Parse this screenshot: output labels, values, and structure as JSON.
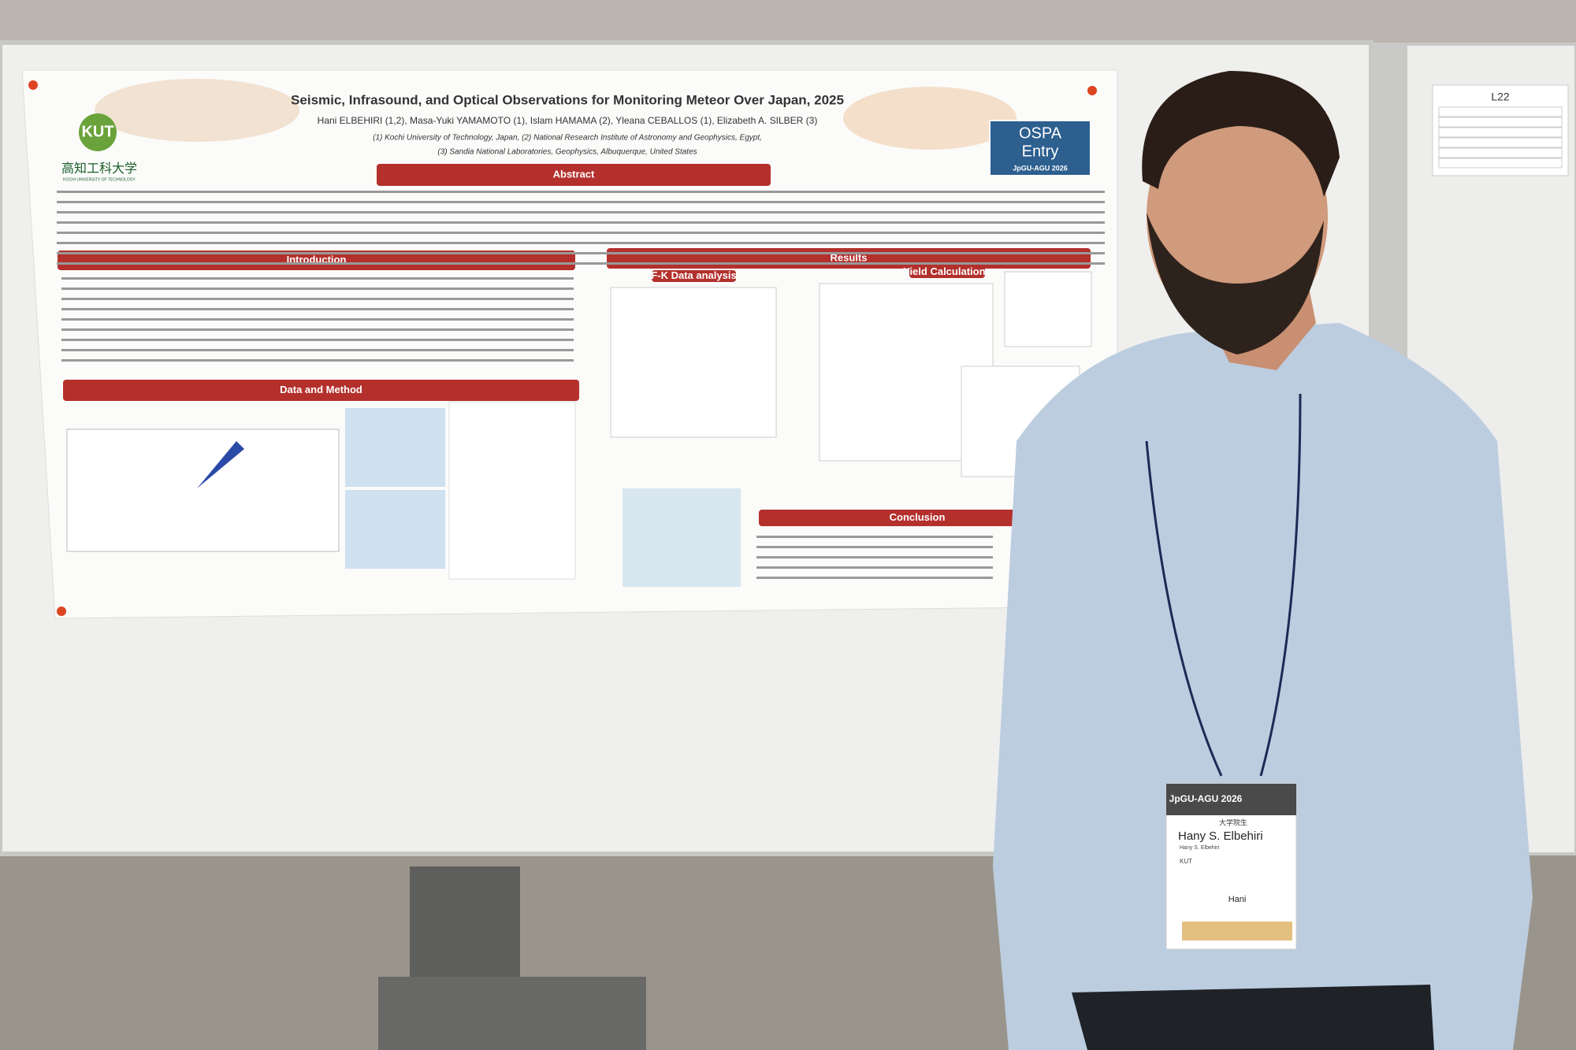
{
  "poster": {
    "title": "Seismic, Infrasound, and Optical Observations for Monitoring Meteor Over Japan, 2025",
    "authors": "Hani ELBEHIRI (1,2), Masa-Yuki YAMAMOTO (1), Islam HAMAMA (2), Yleana CEBALLOS (1), Elizabeth A. SILBER (3)",
    "affiliations": [
      "(1) Kochi University of Technology, Japan, (2) National Research Institute of Astronomy and Geophysics, Egypt,",
      "(3) Sandia National Laboratories, Geophysics, Albuquerque, United States"
    ],
    "logo": {
      "name": "高知工科大学",
      "subtitle": "KOCHI UNIVERSITY OF TECHNOLOGY"
    },
    "ospa": {
      "line1": "OSPA",
      "line2": "Entry",
      "event": "JpGU-AGU 2026"
    },
    "sections": {
      "abstract": "Abstract",
      "introduction": "Introduction",
      "data_and_method": "Data and Method",
      "results": "Results",
      "fk": "F-K Data analysis",
      "yield": "Yield Calculations",
      "conclusion": "Conclusion"
    }
  },
  "sign": {
    "label": "L22"
  },
  "name_badge": {
    "event": "JpGU-AGU 2026",
    "role": "大学院生",
    "name": "Hany S. Elbehiri",
    "name_small": "Hany S. Elbehiri",
    "affiliation": "KUT",
    "nickname": "Hani"
  }
}
